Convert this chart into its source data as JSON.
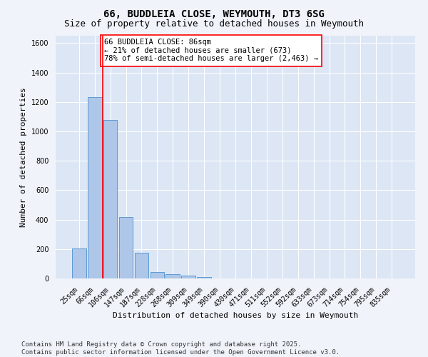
{
  "title1": "66, BUDDLEIA CLOSE, WEYMOUTH, DT3 6SG",
  "title2": "Size of property relative to detached houses in Weymouth",
  "xlabel": "Distribution of detached houses by size in Weymouth",
  "ylabel": "Number of detached properties",
  "categories": [
    "25sqm",
    "66sqm",
    "106sqm",
    "147sqm",
    "187sqm",
    "228sqm",
    "268sqm",
    "309sqm",
    "349sqm",
    "390sqm",
    "430sqm",
    "471sqm",
    "511sqm",
    "552sqm",
    "592sqm",
    "633sqm",
    "673sqm",
    "714sqm",
    "754sqm",
    "795sqm",
    "835sqm"
  ],
  "values": [
    205,
    1235,
    1075,
    415,
    175,
    45,
    27,
    18,
    8,
    0,
    0,
    0,
    0,
    0,
    0,
    0,
    0,
    0,
    0,
    0,
    0
  ],
  "ylim": [
    0,
    1650
  ],
  "yticks": [
    0,
    200,
    400,
    600,
    800,
    1000,
    1200,
    1400,
    1600
  ],
  "bar_color": "#aec6e8",
  "bar_edge_color": "#5b9bd5",
  "bg_color": "#dce6f5",
  "grid_color": "#ffffff",
  "fig_color": "#f0f4fa",
  "red_line_x": 1.5,
  "annotation_text": "66 BUDDLEIA CLOSE: 86sqm\n← 21% of detached houses are smaller (673)\n78% of semi-detached houses are larger (2,463) →",
  "footer1": "Contains HM Land Registry data © Crown copyright and database right 2025.",
  "footer2": "Contains public sector information licensed under the Open Government Licence v3.0.",
  "title_fontsize": 10,
  "subtitle_fontsize": 9,
  "axis_label_fontsize": 8,
  "tick_fontsize": 7,
  "annotation_fontsize": 7.5,
  "footer_fontsize": 6.5
}
